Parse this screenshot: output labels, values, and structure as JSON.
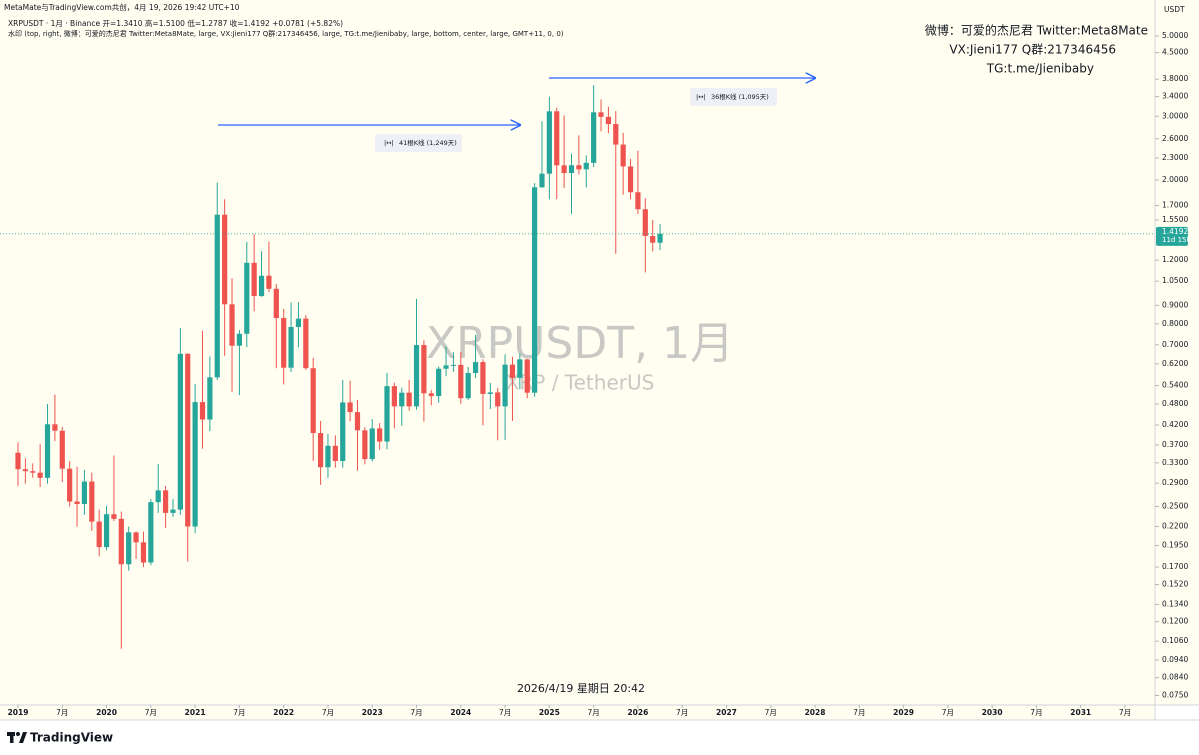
{
  "header": {
    "credit": "MetaMate与TradingView.com共创，4月 19, 2026 19:42 UTC+10",
    "legend": "XRPUSDT · 1月 · Binance  开=1.3410 高=1.5100 低=1.2787 收=1.4192 +0.0781 (+5.82%)",
    "indicator": "水印 (top, right, 微博：可爱的杰尼君 Twitter:Meta8Mate, large, VX:Jieni177 Q群:217346456, large, TG:t.me/Jienibaby, large, bottom, center, large, GMT+11, 0, 0)"
  },
  "watermarks": {
    "top_right": [
      "微博：可爱的杰尼君 Twitter:Meta8Mate",
      "VX:Jieni177 Q群:217346456",
      "TG:t.me/Jienibaby"
    ],
    "center_symbol": "XRPUSDT, 1月",
    "center_name": "XRP / TetherUS",
    "bottom": "2026/4/19 星期日 20:42"
  },
  "chart_data": {
    "type": "candlestick",
    "log_scale": true,
    "up_color": "#26a69a",
    "down_color": "#ef5350",
    "y_axis_label": "USDT",
    "last_price": 1.4192,
    "countdown": "11d 15h",
    "annotations": [
      "41根K线 (1,249天)",
      "36根K线 (1,095天)"
    ],
    "x": [
      "2019-01",
      "2019-02",
      "2019-03",
      "2019-04",
      "2019-05",
      "2019-06",
      "2019-07",
      "2019-08",
      "2019-09",
      "2019-10",
      "2019-11",
      "2019-12",
      "2020-01",
      "2020-02",
      "2020-03",
      "2020-04",
      "2020-05",
      "2020-06",
      "2020-07",
      "2020-08",
      "2020-09",
      "2020-10",
      "2020-11",
      "2020-12",
      "2021-01",
      "2021-02",
      "2021-03",
      "2021-04",
      "2021-05",
      "2021-06",
      "2021-07",
      "2021-08",
      "2021-09",
      "2021-10",
      "2021-11",
      "2021-12",
      "2022-01",
      "2022-02",
      "2022-03",
      "2022-04",
      "2022-05",
      "2022-06",
      "2022-07",
      "2022-08",
      "2022-09",
      "2022-10",
      "2022-11",
      "2022-12",
      "2023-01",
      "2023-02",
      "2023-03",
      "2023-04",
      "2023-05",
      "2023-06",
      "2023-07",
      "2023-08",
      "2023-09",
      "2023-10",
      "2023-11",
      "2023-12",
      "2024-01",
      "2024-02",
      "2024-03",
      "2024-04",
      "2024-05",
      "2024-06",
      "2024-07",
      "2024-08",
      "2024-09",
      "2024-10",
      "2024-11",
      "2024-12",
      "2025-01",
      "2025-02",
      "2025-03",
      "2025-04",
      "2025-05",
      "2025-06",
      "2025-07",
      "2025-08",
      "2025-09",
      "2025-10",
      "2025-11",
      "2025-12",
      "2026-01",
      "2026-02",
      "2026-03",
      "2026-04"
    ],
    "open": [
      0.352,
      0.317,
      0.313,
      0.31,
      0.3,
      0.422,
      0.405,
      0.318,
      0.258,
      0.254,
      0.293,
      0.227,
      0.193,
      0.238,
      0.231,
      0.173,
      0.212,
      0.199,
      0.175,
      0.257,
      0.277,
      0.24,
      0.245,
      0.661,
      0.22,
      0.486,
      0.435,
      0.569,
      1.603,
      0.906,
      0.696,
      0.751,
      1.18,
      0.955,
      1.087,
      1.0,
      0.83,
      0.605,
      0.784,
      0.827,
      0.603,
      0.399,
      0.321,
      0.368,
      0.334,
      0.485,
      0.456,
      0.406,
      0.338,
      0.411,
      0.378,
      0.538,
      0.473,
      0.516,
      0.473,
      0.699,
      0.514,
      0.505,
      0.601,
      0.614,
      0.616,
      0.498,
      0.585,
      0.627,
      0.512,
      0.517,
      0.473,
      0.617,
      0.567,
      0.638,
      0.516,
      1.909,
      2.082,
      3.097,
      2.196,
      2.09,
      2.197,
      2.14,
      2.23,
      3.077,
      2.99,
      2.855,
      2.506,
      2.18,
      1.85,
      1.66,
      1.4,
      1.341
    ],
    "high": [
      0.376,
      0.34,
      0.329,
      0.372,
      0.48,
      0.51,
      0.415,
      0.334,
      0.322,
      0.316,
      0.31,
      0.245,
      0.251,
      0.346,
      0.242,
      0.22,
      0.213,
      0.213,
      0.262,
      0.328,
      0.285,
      0.262,
      0.78,
      0.663,
      0.546,
      0.765,
      0.65,
      1.966,
      1.769,
      1.07,
      0.769,
      1.349,
      1.414,
      1.27,
      1.35,
      1.03,
      0.88,
      0.917,
      0.918,
      0.846,
      0.644,
      0.431,
      0.397,
      0.393,
      0.559,
      0.557,
      0.493,
      0.414,
      0.436,
      0.425,
      0.585,
      0.55,
      0.533,
      0.56,
      0.938,
      0.72,
      0.525,
      0.609,
      0.693,
      0.669,
      0.669,
      0.608,
      0.745,
      0.638,
      0.549,
      0.532,
      0.659,
      0.649,
      0.663,
      0.64,
      1.96,
      2.907,
      3.4,
      3.168,
      3.02,
      2.366,
      2.657,
      2.34,
      3.659,
      3.339,
      3.188,
      3.1,
      2.7,
      2.29,
      2.41,
      1.78,
      1.55,
      1.51
    ],
    "low": [
      0.285,
      0.289,
      0.3,
      0.283,
      0.289,
      0.379,
      0.292,
      0.25,
      0.22,
      0.237,
      0.214,
      0.182,
      0.189,
      0.228,
      0.101,
      0.166,
      0.179,
      0.17,
      0.172,
      0.24,
      0.218,
      0.234,
      0.237,
      0.176,
      0.211,
      0.361,
      0.404,
      0.56,
      0.653,
      0.519,
      0.508,
      0.69,
      0.866,
      0.95,
      0.98,
      0.603,
      0.544,
      0.589,
      0.689,
      0.597,
      0.334,
      0.287,
      0.3,
      0.32,
      0.32,
      0.43,
      0.314,
      0.327,
      0.333,
      0.359,
      0.36,
      0.411,
      0.418,
      0.46,
      0.463,
      0.429,
      0.476,
      0.484,
      0.573,
      0.589,
      0.481,
      0.493,
      0.567,
      0.419,
      0.465,
      0.381,
      0.382,
      0.431,
      0.528,
      0.498,
      0.503,
      1.9,
      1.766,
      1.77,
      1.9,
      1.611,
      2.07,
      1.906,
      2.172,
      2.724,
      2.695,
      1.25,
      1.82,
      1.77,
      1.61,
      1.11,
      1.27,
      1.2787
    ],
    "close": [
      0.317,
      0.313,
      0.31,
      0.3,
      0.422,
      0.405,
      0.318,
      0.258,
      0.254,
      0.293,
      0.227,
      0.193,
      0.238,
      0.231,
      0.173,
      0.212,
      0.199,
      0.175,
      0.257,
      0.277,
      0.24,
      0.245,
      0.661,
      0.22,
      0.486,
      0.435,
      0.569,
      1.603,
      0.906,
      0.696,
      0.751,
      1.18,
      0.955,
      1.087,
      1.0,
      0.83,
      0.605,
      0.784,
      0.827,
      0.603,
      0.399,
      0.321,
      0.368,
      0.334,
      0.485,
      0.456,
      0.406,
      0.338,
      0.411,
      0.378,
      0.538,
      0.473,
      0.516,
      0.473,
      0.699,
      0.514,
      0.505,
      0.601,
      0.614,
      0.616,
      0.498,
      0.585,
      0.627,
      0.512,
      0.517,
      0.473,
      0.617,
      0.567,
      0.638,
      0.516,
      1.909,
      2.082,
      3.097,
      2.196,
      2.09,
      2.197,
      2.14,
      2.23,
      3.077,
      2.99,
      2.855,
      2.506,
      2.18,
      1.85,
      1.66,
      1.4,
      1.341,
      1.4192
    ],
    "ylim": [
      0.0706,
      5.54
    ],
    "yticks": [
      {
        "value": 5.0,
        "label": "5.0000"
      },
      {
        "value": 4.5,
        "label": "4.5000"
      },
      {
        "value": 3.8,
        "label": "3.8000"
      },
      {
        "value": 3.4,
        "label": "3.4000"
      },
      {
        "value": 3.0,
        "label": "3.0000"
      },
      {
        "value": 2.6,
        "label": "2.6000"
      },
      {
        "value": 2.3,
        "label": "2.3000"
      },
      {
        "value": 2.0,
        "label": "2.0000"
      },
      {
        "value": 1.7,
        "label": "1.7000"
      },
      {
        "value": 1.55,
        "label": "1.5500"
      },
      {
        "value": 1.2,
        "label": "1.2000"
      },
      {
        "value": 1.05,
        "label": "1.0500"
      },
      {
        "value": 0.9,
        "label": "0.9000"
      },
      {
        "value": 0.8,
        "label": "0.8000"
      },
      {
        "value": 0.7,
        "label": "0.7000"
      },
      {
        "value": 0.62,
        "label": "0.6200"
      },
      {
        "value": 0.54,
        "label": "0.5400"
      },
      {
        "value": 0.48,
        "label": "0.4800"
      },
      {
        "value": 0.42,
        "label": "0.4200"
      },
      {
        "value": 0.37,
        "label": "0.3700"
      },
      {
        "value": 0.33,
        "label": "0.3300"
      },
      {
        "value": 0.29,
        "label": "0.2900"
      },
      {
        "value": 0.25,
        "label": "0.2500"
      },
      {
        "value": 0.22,
        "label": "0.2200"
      },
      {
        "value": 0.195,
        "label": "0.1950"
      },
      {
        "value": 0.17,
        "label": "0.1700"
      },
      {
        "value": 0.152,
        "label": "0.1520"
      },
      {
        "value": 0.134,
        "label": "0.1340"
      },
      {
        "value": 0.12,
        "label": "0.1200"
      },
      {
        "value": 0.106,
        "label": "0.1060"
      },
      {
        "value": 0.094,
        "label": "0.0940"
      },
      {
        "value": 0.084,
        "label": "0.0840"
      },
      {
        "value": 0.075,
        "label": "0.0750"
      }
    ],
    "xticks": [
      {
        "value": "2019-01",
        "label": "2019"
      },
      {
        "value": "2019-07",
        "label": "7月"
      },
      {
        "value": "2020-01",
        "label": "2020"
      },
      {
        "value": "2020-07",
        "label": "7月"
      },
      {
        "value": "2021-01",
        "label": "2021"
      },
      {
        "value": "2021-07",
        "label": "7月"
      },
      {
        "value": "2022-01",
        "label": "2022"
      },
      {
        "value": "2022-07",
        "label": "7月"
      },
      {
        "value": "2023-01",
        "label": "2023"
      },
      {
        "value": "2023-07",
        "label": "7月"
      },
      {
        "value": "2024-01",
        "label": "2024"
      },
      {
        "value": "2024-07",
        "label": "7月"
      },
      {
        "value": "2025-01",
        "label": "2025"
      },
      {
        "value": "2025-07",
        "label": "7月"
      },
      {
        "value": "2026-01",
        "label": "2026"
      },
      {
        "value": "2026-07",
        "label": "7月"
      },
      {
        "value": "2027-01",
        "label": "2027"
      },
      {
        "value": "2027-07",
        "label": "7月"
      },
      {
        "value": "2028-01",
        "label": "2028"
      },
      {
        "value": "2028-07",
        "label": "7月"
      },
      {
        "value": "2029-01",
        "label": "2029"
      },
      {
        "value": "2029-07",
        "label": "7月"
      },
      {
        "value": "2030-01",
        "label": "2030"
      },
      {
        "value": "2030-07",
        "label": "7月"
      },
      {
        "value": "2031-01",
        "label": "2031"
      },
      {
        "value": "2031-07",
        "label": "7月"
      }
    ]
  },
  "footer": {
    "brand": "TradingView"
  }
}
